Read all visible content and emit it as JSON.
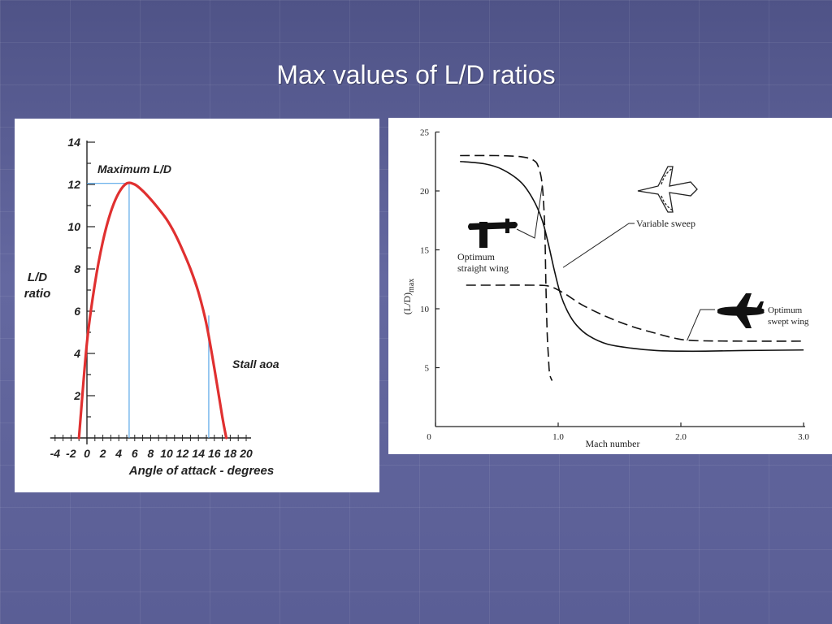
{
  "slide": {
    "title": "Max values of L/D ratios",
    "background_color": "#5d6196",
    "title_color": "#ffffff"
  },
  "chart_data": [
    {
      "type": "line",
      "title": "",
      "xlabel": "Angle of attack - degrees",
      "ylabel": "L/D\nratio",
      "ylabel_lines": [
        "L/D",
        "ratio"
      ],
      "xlim": [
        -4,
        20
      ],
      "ylim": [
        0,
        14
      ],
      "x_ticks": [
        -4,
        -2,
        0,
        2,
        4,
        6,
        8,
        10,
        12,
        14,
        16,
        18,
        20
      ],
      "y_ticks": [
        2,
        4,
        6,
        8,
        10,
        12,
        14
      ],
      "grid": false,
      "series": [
        {
          "color": "#e03030",
          "x": [
            -1,
            0,
            1,
            2,
            3,
            4,
            5,
            6,
            7,
            8,
            9,
            10,
            11,
            12,
            13,
            14,
            15,
            16,
            17,
            17.5
          ],
          "y": [
            0,
            4.5,
            7.3,
            9.3,
            10.7,
            11.6,
            12.05,
            12.0,
            11.7,
            11.3,
            10.85,
            10.35,
            9.7,
            8.9,
            8.0,
            6.9,
            5.4,
            3.3,
            1.0,
            0
          ]
        }
      ],
      "annotations": [
        {
          "text": "Maximum L/D",
          "x": 5.3,
          "y": 12.05
        },
        {
          "text": "Stall aoa",
          "x": 15.3,
          "y": 5.8
        }
      ]
    },
    {
      "type": "line",
      "title": "",
      "xlabel": "Mach number",
      "ylabel": "(L/D)max",
      "ylabel_main": "(L/D)",
      "ylabel_sub": "max",
      "xlim": [
        0,
        3.0
      ],
      "ylim": [
        0,
        25
      ],
      "x_ticks": [
        0,
        1.0,
        2.0,
        3.0
      ],
      "x_tick_labels": [
        "0",
        "1.0",
        "2.0",
        "3.0"
      ],
      "y_ticks": [
        5,
        10,
        15,
        20,
        25
      ],
      "grid": false,
      "series": [
        {
          "name": "Variable sweep",
          "style": "solid",
          "x": [
            0.2,
            0.4,
            0.55,
            0.7,
            0.8,
            0.87,
            0.92,
            0.97,
            1.02,
            1.08,
            1.15,
            1.25,
            1.4,
            1.6,
            1.8,
            2.0,
            2.2,
            2.5,
            3.0
          ],
          "y": [
            22.5,
            22.3,
            21.8,
            20.7,
            19.2,
            17.5,
            15.5,
            13.2,
            11.2,
            9.7,
            8.6,
            7.7,
            7.0,
            6.65,
            6.45,
            6.4,
            6.4,
            6.45,
            6.5
          ]
        },
        {
          "name": "Optimum straight wing",
          "style": "dashed",
          "x": [
            0.2,
            0.5,
            0.7,
            0.8,
            0.84,
            0.87,
            0.89,
            0.9,
            0.91,
            0.92,
            0.93,
            0.95
          ],
          "y": [
            23,
            23,
            22.9,
            22.6,
            22,
            20.5,
            17,
            12,
            8,
            6,
            4.5,
            3.9
          ]
        },
        {
          "name": "Optimum swept wing",
          "style": "dashed",
          "x": [
            0.25,
            0.5,
            0.8,
            0.93,
            1.05,
            1.2,
            1.4,
            1.6,
            1.8,
            1.95,
            2.1,
            2.5,
            3.0
          ],
          "y": [
            12,
            12,
            12,
            11.9,
            11.3,
            10.3,
            9.3,
            8.5,
            7.9,
            7.5,
            7.3,
            7.25,
            7.25
          ]
        }
      ],
      "annotations": [
        {
          "text": "Variable sweep"
        },
        {
          "text": "Optimum straight wing",
          "lines": [
            "Optimum",
            "straight wing"
          ]
        },
        {
          "text": "Optimum swept wing",
          "lines": [
            "Optimum",
            "swept wing"
          ]
        }
      ],
      "icons": [
        "variable-sweep-aircraft-icon",
        "straight-wing-aircraft-icon",
        "swept-wing-aircraft-icon"
      ]
    }
  ]
}
